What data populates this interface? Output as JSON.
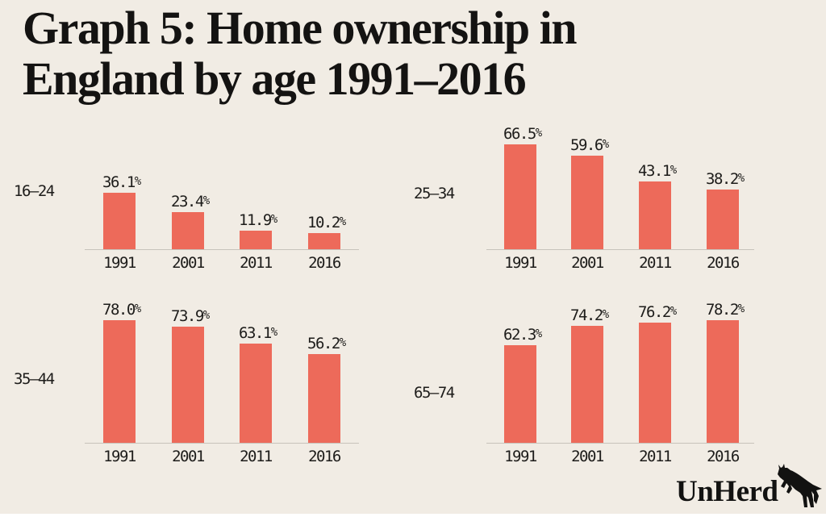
{
  "page": {
    "background_color": "#f1ece4",
    "title_line_1": "Graph 5: Home ownership in",
    "title_line_2": "England by age 1991–2016"
  },
  "branding": {
    "logo_text": "UnHerd",
    "logo_icon": "rearing-cow"
  },
  "chart_data": {
    "type": "bar",
    "title": "Graph 5: Home ownership in England by age 1991–2016",
    "layout_hint": "2x2 small multiples, shared percentage scale, value labels above bars, x-axis baseline only, no y-axis, legend off",
    "unit": "%",
    "bar_color": "#ed6a5a",
    "axis_line_color": "#c7c3bb",
    "text_color": "#1d1c1a",
    "categories": [
      "1991",
      "2001",
      "2011",
      "2016"
    ],
    "series": [
      {
        "name": "16–24",
        "values": [
          36.1,
          23.4,
          11.9,
          10.2
        ]
      },
      {
        "name": "25–34",
        "values": [
          66.5,
          59.6,
          43.1,
          38.2
        ]
      },
      {
        "name": "35–44",
        "values": [
          78.0,
          73.9,
          63.1,
          56.2
        ]
      },
      {
        "name": "65–74",
        "values": [
          62.3,
          74.2,
          76.2,
          78.2
        ]
      }
    ],
    "value_range": [
      0,
      100
    ]
  }
}
